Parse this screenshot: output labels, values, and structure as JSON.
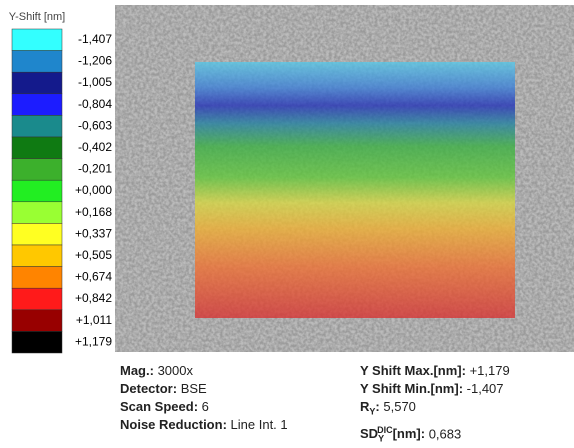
{
  "legend": {
    "title": "Y-Shift [nm]",
    "entries": [
      {
        "label": "-1,407",
        "color": "#33ffff"
      },
      {
        "label": "-1,206",
        "color": "#1f86cc"
      },
      {
        "label": "-1,005",
        "color": "#141a8c"
      },
      {
        "label": "-0,804",
        "color": "#1c1cff"
      },
      {
        "label": "-0,603",
        "color": "#1a8a8c"
      },
      {
        "label": "-0,402",
        "color": "#0f7a12"
      },
      {
        "label": "-0,201",
        "color": "#3cb02c"
      },
      {
        "label": "+0,000",
        "color": "#22ee22"
      },
      {
        "label": "+0,168",
        "color": "#99ff33"
      },
      {
        "label": "+0,337",
        "color": "#ffff22"
      },
      {
        "label": "+0,505",
        "color": "#ffc800"
      },
      {
        "label": "+0,674",
        "color": "#ff8400"
      },
      {
        "label": "+0,842",
        "color": "#ff1a1a"
      },
      {
        "label": "+1,011",
        "color": "#980000"
      },
      {
        "label": "+1,179",
        "color": "#000000"
      }
    ]
  },
  "info": {
    "left": [
      {
        "label": "Mag.:",
        "value": "3000x"
      },
      {
        "label": "Detector:",
        "value": "BSE"
      },
      {
        "label": "Scan Speed:",
        "value": "6"
      },
      {
        "label": "Noise Reduction:",
        "value": "Line Int. 1"
      }
    ],
    "right": [
      {
        "label": "Y Shift Max.[nm]:",
        "value": "+1,179"
      },
      {
        "label": "Y Shift Min.[nm]:",
        "value": "-1,407"
      },
      {
        "label": "R",
        "sub": "Y",
        "rest": ":",
        "value": "5,570"
      },
      {
        "label": "SD",
        "sub": "Y",
        "sup": "DIC",
        "rest": "[nm]:",
        "value": "0,683"
      }
    ]
  }
}
